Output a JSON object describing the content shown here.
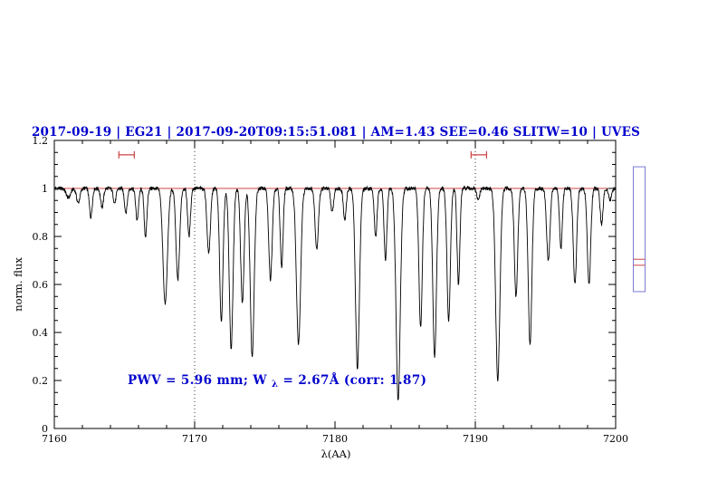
{
  "chart_data": {
    "type": "line",
    "title": "2017-09-19 | EG21 | 2017-09-20T09:15:51.081 | AM=1.43 SEE=0.46 SLITW=10 | UVES",
    "title_color": "#0000cd",
    "xlabel": "λ(AA)",
    "ylabel": "norm. flux",
    "xlim": [
      7160,
      7200
    ],
    "ylim": [
      0,
      1.2
    ],
    "xticks": [
      "7160",
      "7170",
      "7180",
      "7190",
      "7200"
    ],
    "yticks": [
      "0",
      "0.2",
      "0.4",
      "0.6",
      "0.8",
      "1",
      "1.2"
    ],
    "x_minor_step": 2,
    "y_minor_step": 0.05,
    "grid": "off",
    "legend": "none",
    "dotted_guides_x": [
      7170,
      7190
    ],
    "continuum_level": 1.0,
    "annotation": {
      "prefix": "PWV  =  5.96 mm; W",
      "subscript": "λ",
      "suffix": "  =  2.67Å (corr: 1.87)",
      "color": "#0000cd"
    },
    "red_interval_markers": [
      {
        "x_start": 7164.6,
        "x_end": 7165.7,
        "y": 1.14
      },
      {
        "x_start": 7189.7,
        "x_end": 7190.8,
        "y": 1.14
      }
    ],
    "absorption_lines": [
      [
        7161.0,
        0.04,
        0.15
      ],
      [
        7161.7,
        0.06,
        0.12
      ],
      [
        7162.6,
        0.12,
        0.1
      ],
      [
        7163.4,
        0.08,
        0.1
      ],
      [
        7164.3,
        0.06,
        0.1
      ],
      [
        7165.1,
        0.1,
        0.1
      ],
      [
        7165.9,
        0.13,
        0.1
      ],
      [
        7166.5,
        0.2,
        0.1
      ],
      [
        7167.9,
        0.48,
        0.16
      ],
      [
        7168.8,
        0.38,
        0.13
      ],
      [
        7169.6,
        0.2,
        0.1
      ],
      [
        7171.0,
        0.27,
        0.12
      ],
      [
        7171.9,
        0.55,
        0.12
      ],
      [
        7172.6,
        0.67,
        0.13
      ],
      [
        7173.4,
        0.48,
        0.12
      ],
      [
        7174.1,
        0.7,
        0.14
      ],
      [
        7175.4,
        0.38,
        0.12
      ],
      [
        7176.2,
        0.33,
        0.1
      ],
      [
        7177.4,
        0.65,
        0.15
      ],
      [
        7178.7,
        0.25,
        0.12
      ],
      [
        7179.8,
        0.1,
        0.1
      ],
      [
        7180.7,
        0.13,
        0.1
      ],
      [
        7181.6,
        0.75,
        0.14
      ],
      [
        7182.9,
        0.2,
        0.1
      ],
      [
        7183.6,
        0.3,
        0.1
      ],
      [
        7184.5,
        0.88,
        0.15
      ],
      [
        7186.1,
        0.58,
        0.12
      ],
      [
        7187.1,
        0.7,
        0.13
      ],
      [
        7188.1,
        0.55,
        0.12
      ],
      [
        7188.8,
        0.4,
        0.1
      ],
      [
        7190.2,
        0.05,
        0.1
      ],
      [
        7191.6,
        0.8,
        0.15
      ],
      [
        7192.9,
        0.45,
        0.12
      ],
      [
        7193.9,
        0.65,
        0.13
      ],
      [
        7195.2,
        0.3,
        0.12
      ],
      [
        7196.1,
        0.25,
        0.1
      ],
      [
        7197.1,
        0.4,
        0.12
      ],
      [
        7198.1,
        0.4,
        0.12
      ],
      [
        7199.0,
        0.15,
        0.1
      ],
      [
        7199.6,
        0.05,
        0.1
      ]
    ],
    "noise_amplitude": 0.008,
    "sampling_step": 0.02,
    "colors": {
      "spectrum": "#000000",
      "continuum": "#cc4444",
      "markers": "#cc4444",
      "guides": "#333333"
    }
  },
  "side_gauge": {
    "top_flux": 1.09,
    "bottom_flux": 0.57,
    "red_line_fluxes": [
      0.705,
      0.68
    ],
    "border_color": "#7b7bd6",
    "line_color": "#cc4444"
  }
}
